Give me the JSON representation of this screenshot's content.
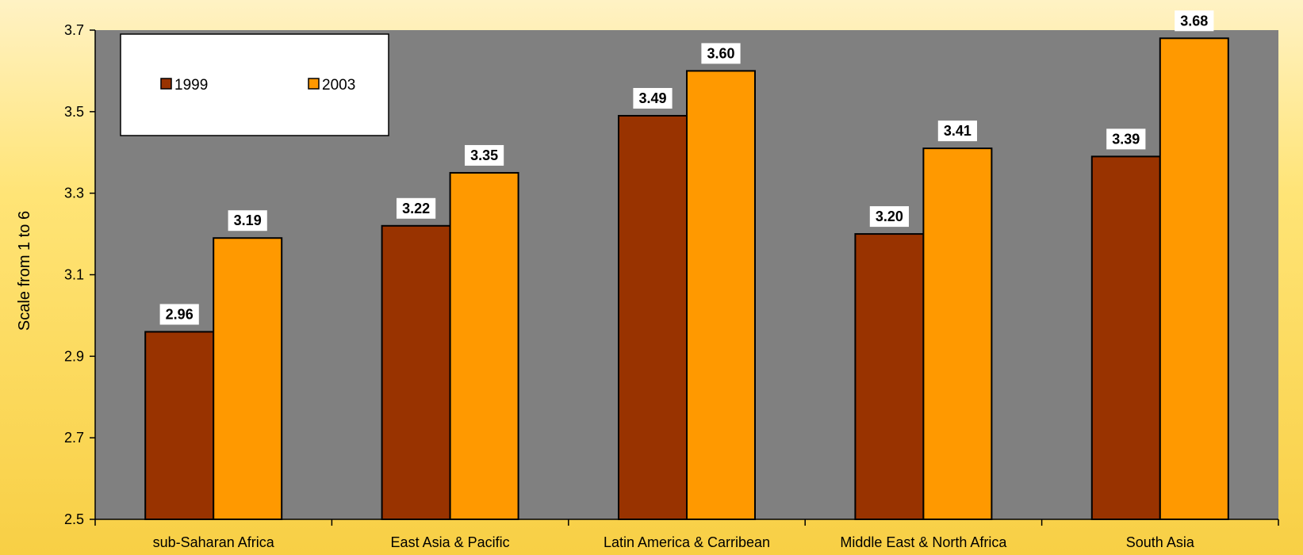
{
  "chart_data": {
    "type": "bar",
    "title": "",
    "xlabel": "",
    "ylabel": "Scale from 1 to 6",
    "ylim": [
      2.5,
      3.7
    ],
    "yticks": [
      "2.5",
      "2.7",
      "2.9",
      "3.1",
      "3.3",
      "3.5",
      "3.7"
    ],
    "categories": [
      "sub-Saharan Africa",
      "East Asia & Pacific",
      "Latin America & Carribean",
      "Middle East & North Africa",
      "South Asia"
    ],
    "series": [
      {
        "name": "1999",
        "color": "#993300",
        "values": [
          2.96,
          3.22,
          3.49,
          3.2,
          3.39
        ],
        "labels": [
          "2.96",
          "3.22",
          "3.49",
          "3.20",
          "3.39"
        ]
      },
      {
        "name": "2003",
        "color": "#FF9900",
        "values": [
          3.19,
          3.35,
          3.6,
          3.41,
          3.68
        ],
        "labels": [
          "3.19",
          "3.35",
          "3.60",
          "3.41",
          "3.68"
        ]
      }
    ],
    "legend_position": "top-left",
    "grid": false,
    "plot_background": "#808080",
    "legend_background": "#FFFFFF"
  }
}
